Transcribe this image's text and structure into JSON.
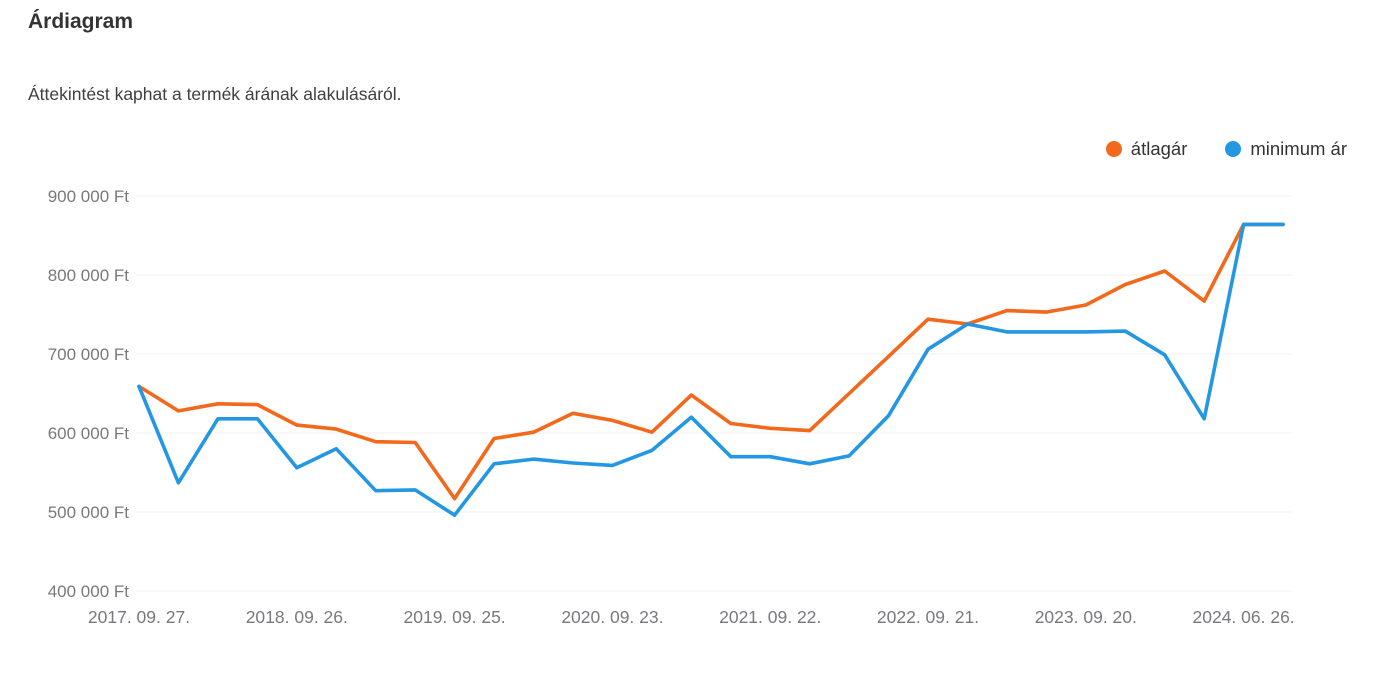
{
  "header": {
    "title": "Árdiagram",
    "subtitle": "Áttekintést kaphat a termék árának alakulásáról."
  },
  "chart_data": {
    "type": "line",
    "title": "Árdiagram",
    "subtitle": "Áttekintést kaphat a termék árának alakulásáról.",
    "y_unit": "Ft",
    "ylim": [
      400000,
      900000
    ],
    "y_tick_step": 100000,
    "y_tick_labels": [
      "900 000 Ft",
      "800 000 Ft",
      "700 000 Ft",
      "600 000 Ft",
      "500 000 Ft",
      "400 000 Ft"
    ],
    "grid": "horizontal-only",
    "legend_position": "top-right",
    "point_count": 30,
    "x_tick_labels": [
      {
        "index": 0,
        "label": "2017. 09. 27."
      },
      {
        "index": 4,
        "label": "2018. 09. 26."
      },
      {
        "index": 8,
        "label": "2019. 09. 25."
      },
      {
        "index": 12,
        "label": "2020. 09. 23."
      },
      {
        "index": 16,
        "label": "2021. 09. 22."
      },
      {
        "index": 20,
        "label": "2022. 09. 21."
      },
      {
        "index": 24,
        "label": "2023. 09. 20."
      },
      {
        "index": 28,
        "label": "2024. 06. 26."
      }
    ],
    "series": [
      {
        "name": "átlagár",
        "color": "#f2691c",
        "values": [
          659000,
          628000,
          637000,
          636000,
          610000,
          605000,
          589000,
          588000,
          517000,
          593000,
          601000,
          625000,
          616000,
          601000,
          648000,
          612000,
          606000,
          603000,
          650000,
          697000,
          744000,
          738000,
          755000,
          753000,
          762000,
          788000,
          805000,
          767000,
          864000,
          864000
        ]
      },
      {
        "name": "minimum ár",
        "color": "#2497e3",
        "values": [
          659000,
          537000,
          618000,
          618000,
          556000,
          580000,
          527000,
          528000,
          496000,
          561000,
          567000,
          562000,
          559000,
          578000,
          620000,
          570000,
          570000,
          561000,
          571000,
          622000,
          706000,
          738000,
          728000,
          728000,
          728000,
          729000,
          699000,
          618000,
          864000,
          864000
        ]
      }
    ],
    "colors": {
      "grid_line": "#f2f2f2",
      "axis_label": "#77797c",
      "title_text": "#333333"
    }
  }
}
